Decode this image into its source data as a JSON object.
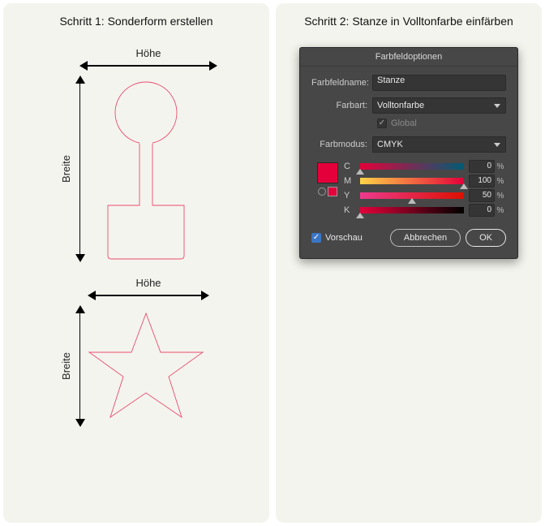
{
  "left": {
    "title": "Schritt 1: Sonderform erstellen",
    "label_height": "Höhe",
    "label_width": "Breite",
    "shape_stroke": "#e94c6f",
    "shape_bg": "#f4f4ee"
  },
  "right": {
    "title": "Schritt 2: Stanze in Volltonfarbe einfärben",
    "dialog": {
      "title": "Farbfeldoptionen",
      "name_label": "Farbfeldname:",
      "name_value": "Stanze",
      "type_label": "Farbart:",
      "type_value": "Volltonfarbe",
      "global_label": "Global",
      "global_checked": true,
      "mode_label": "Farbmodus:",
      "mode_value": "CMYK",
      "swatch_color": "#e4003a",
      "channels": [
        {
          "label": "C",
          "value": 0,
          "gradient": "linear-gradient(90deg,#e4003a,#005c74)"
        },
        {
          "label": "M",
          "value": 100,
          "gradient": "linear-gradient(90deg,#ffd447,#e4003a)"
        },
        {
          "label": "Y",
          "value": 50,
          "gradient": "linear-gradient(90deg,#ec3a8e,#dd1000)"
        },
        {
          "label": "K",
          "value": 0,
          "gradient": "linear-gradient(90deg,#e4003a,#000000)"
        }
      ],
      "preview_label": "Vorschau",
      "preview_checked": true,
      "cancel": "Abbrechen",
      "ok": "OK"
    }
  }
}
